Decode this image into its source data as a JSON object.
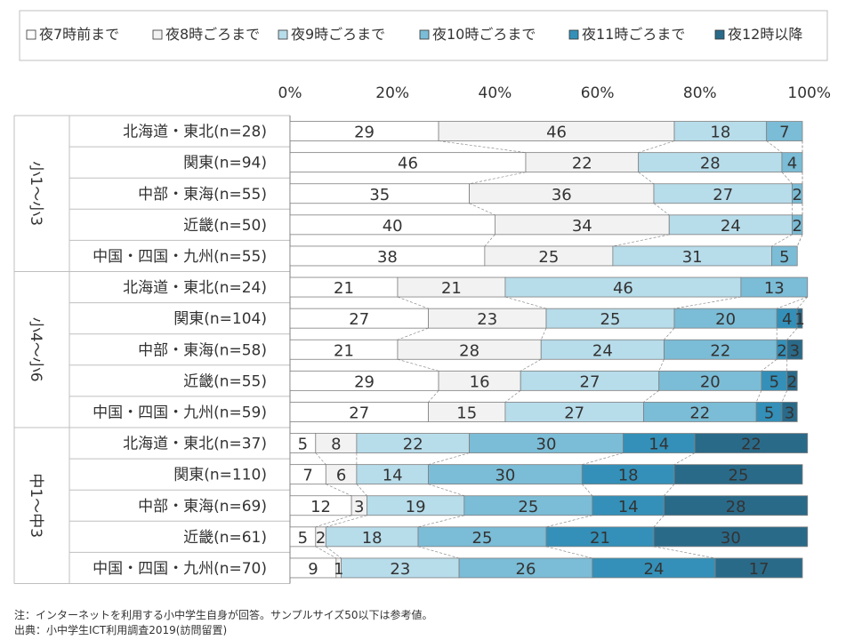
{
  "chart_data": {
    "type": "bar",
    "stacked": true,
    "orientation": "horizontal",
    "percent": true,
    "legend_position": "top",
    "xlim": [
      0,
      100
    ],
    "x_ticks": [
      "0%",
      "20%",
      "40%",
      "60%",
      "80%",
      "100%"
    ],
    "groups": [
      {
        "label": "小1〜小3",
        "rows": [
          "北海道・東北(n=28)",
          "関東(n=94)",
          "中部・東海(n=55)",
          "近畿(n=50)",
          "中国・四国・九州(n=55)"
        ]
      },
      {
        "label": "小4〜小6",
        "rows": [
          "北海道・東北(n=24)",
          "関東(n=104)",
          "中部・東海(n=58)",
          "近畿(n=55)",
          "中国・四国・九州(n=59)"
        ]
      },
      {
        "label": "中1〜中3",
        "rows": [
          "北海道・東北(n=37)",
          "関東(n=110)",
          "中部・東海(n=69)",
          "近畿(n=61)",
          "中国・四国・九州(n=70)"
        ]
      }
    ],
    "series": [
      {
        "name": "夜7時前まで",
        "color": "#ffffff",
        "label_color": "#333333",
        "values": [
          29,
          46,
          35,
          40,
          38,
          21,
          27,
          21,
          29,
          27,
          5,
          7,
          12,
          5,
          9
        ]
      },
      {
        "name": "夜8時ごろまで",
        "color": "#f2f2f2",
        "label_color": "#333333",
        "values": [
          46,
          22,
          36,
          34,
          25,
          21,
          23,
          28,
          16,
          15,
          8,
          6,
          3,
          2,
          1
        ]
      },
      {
        "name": "夜9時ごろまで",
        "color": "#b7dcea",
        "label_color": "#333333",
        "values": [
          18,
          28,
          27,
          24,
          31,
          46,
          25,
          24,
          27,
          27,
          22,
          14,
          19,
          18,
          23
        ]
      },
      {
        "name": "夜10時ごろまで",
        "color": "#7bbcd6",
        "label_color": "#333333",
        "values": [
          7,
          4,
          2,
          2,
          5,
          13,
          20,
          22,
          20,
          22,
          30,
          30,
          25,
          25,
          26
        ]
      },
      {
        "name": "夜11時ごろまで",
        "color": "#3490b8",
        "label_color": "#333333",
        "values": [
          0,
          0,
          0,
          0,
          0,
          0,
          4,
          2,
          5,
          5,
          14,
          18,
          14,
          21,
          24
        ]
      },
      {
        "name": "夜12時以降",
        "color": "#2a6a89",
        "label_color": "#333333",
        "values": [
          0,
          0,
          0,
          0,
          0,
          0,
          1,
          3,
          2,
          3,
          22,
          25,
          28,
          30,
          17
        ]
      }
    ]
  },
  "notes": {
    "line1": "注：インターネットを利用する小中学生自身が回答。サンプルサイズ50以下は参考値。",
    "line2": "出典：小中学生ICT利用調査2019(訪問留置)"
  }
}
